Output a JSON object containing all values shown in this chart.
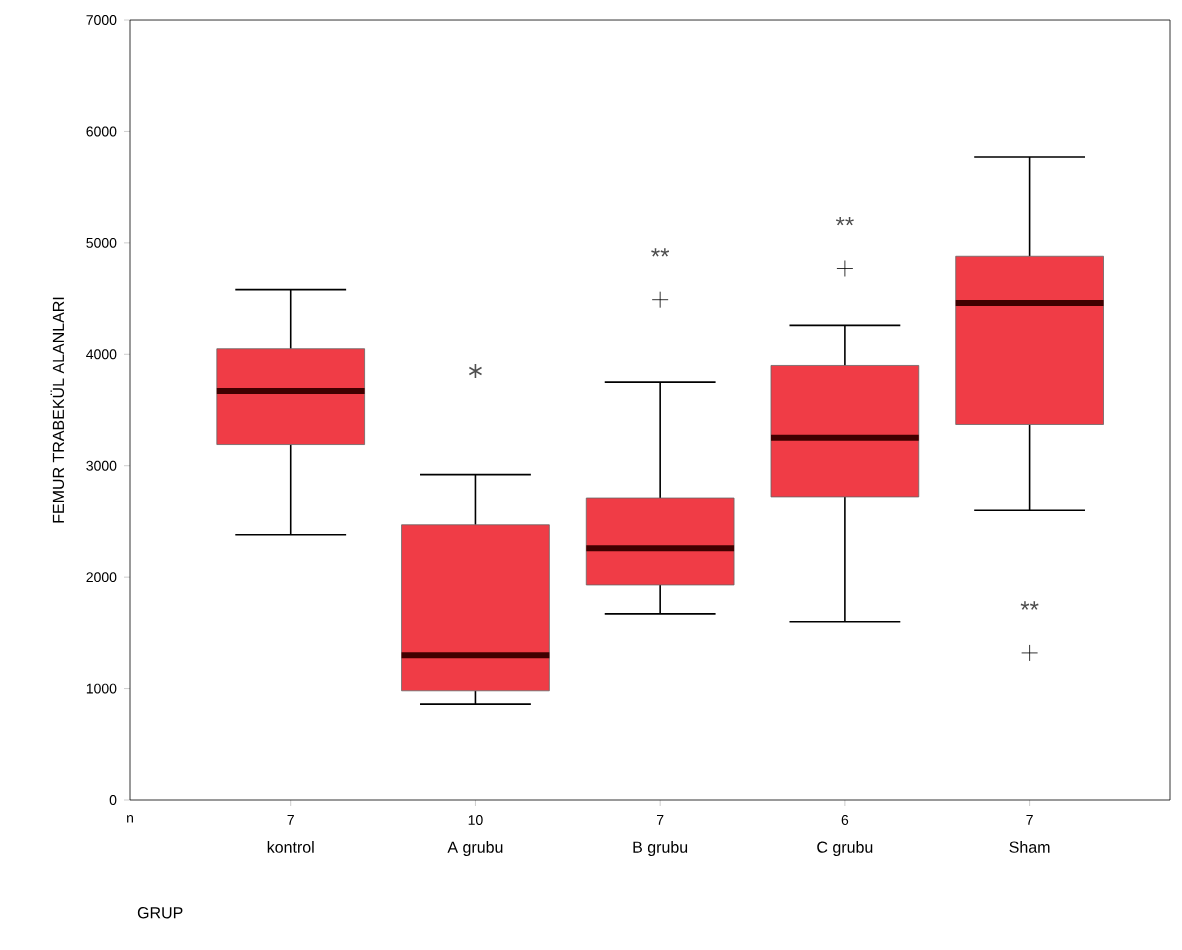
{
  "chart_data": {
    "type": "box",
    "xlabel": "GRUP",
    "ylabel": "FEMUR TRABEKÜL ALANLARI",
    "categories": [
      "kontrol",
      "A grubu",
      "B grubu",
      "C grubu",
      "Sham"
    ],
    "color": "#f03c46",
    "boxes": [
      {
        "low": 2380,
        "q1": 3190,
        "median": 3670,
        "q3": 4050,
        "high": 4580
      },
      {
        "low": 860,
        "q1": 980,
        "median": 1300,
        "q3": 2470,
        "high": 2920
      },
      {
        "low": 1670,
        "q1": 1930,
        "median": 2260,
        "q3": 2710,
        "high": 3750,
        "outliers": [
          4490
        ]
      },
      {
        "low": 1600,
        "q1": 2720,
        "median": 3250,
        "q3": 3900,
        "high": 4260,
        "outliers": [
          4770
        ]
      },
      {
        "low": 2600,
        "q1": 3370,
        "median": 4460,
        "q3": 4880,
        "high": 5770,
        "outliers": [
          1320
        ]
      }
    ],
    "series": [
      {
        "type": "scatter",
        "x": [
          "A grubu"
        ],
        "values": [
          3850
        ],
        "color": "#505050",
        "marker": "cross"
      }
    ],
    "ylim": [
      0,
      7000
    ],
    "yticks": [
      0,
      1000,
      2000,
      3000,
      4000,
      5000,
      6000,
      7000
    ],
    "annotations": [
      "n",
      "7",
      "10",
      "7",
      "6",
      "7",
      "**",
      "**",
      "**"
    ]
  }
}
